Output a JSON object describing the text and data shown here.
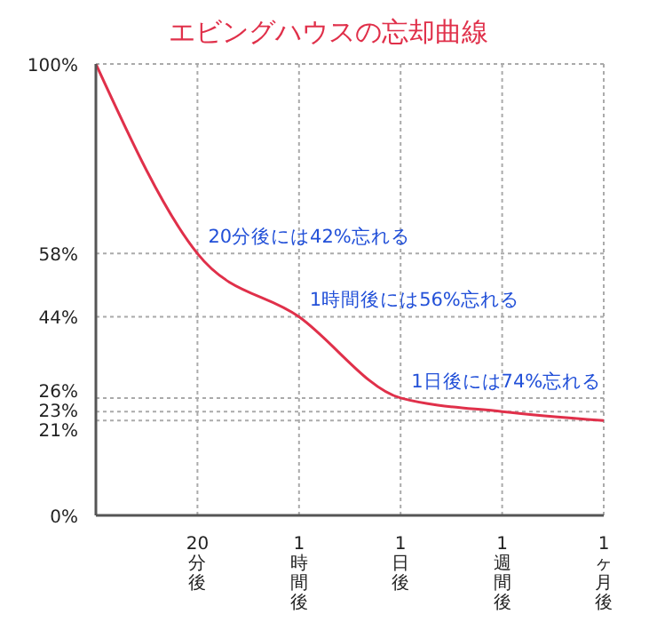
{
  "chart_data": {
    "type": "line",
    "title": "エビングハウスの忘却曲線",
    "categories": [
      null,
      "20分後",
      "1時間後",
      "1日後",
      "1週間後",
      "1ヶ月後"
    ],
    "series": [
      {
        "color": "#e0304a",
        "values": [
          100,
          58,
          44,
          26,
          23,
          21
        ]
      }
    ],
    "ylim": [
      0,
      100
    ],
    "yticks": [
      {
        "value": 0,
        "label": "0%"
      },
      {
        "value": 21,
        "label": "21%"
      },
      {
        "value": 23,
        "label": "23%"
      },
      {
        "value": 26,
        "label": "26%"
      },
      {
        "value": 44,
        "label": "44%"
      },
      {
        "value": 58,
        "label": "58%"
      },
      {
        "value": 100,
        "label": "100%"
      }
    ],
    "grid": true,
    "marker": "none",
    "line_style": "solid",
    "legend": false,
    "annotations": [
      {
        "text": "20分後には42%忘れる",
        "x": "20分後",
        "y": 58
      },
      {
        "text": "1時間後には56%忘れる",
        "x": "1時間後",
        "y": 44
      },
      {
        "text": "1日後には74%忘れる",
        "x": "1日後",
        "y": 26
      }
    ]
  }
}
